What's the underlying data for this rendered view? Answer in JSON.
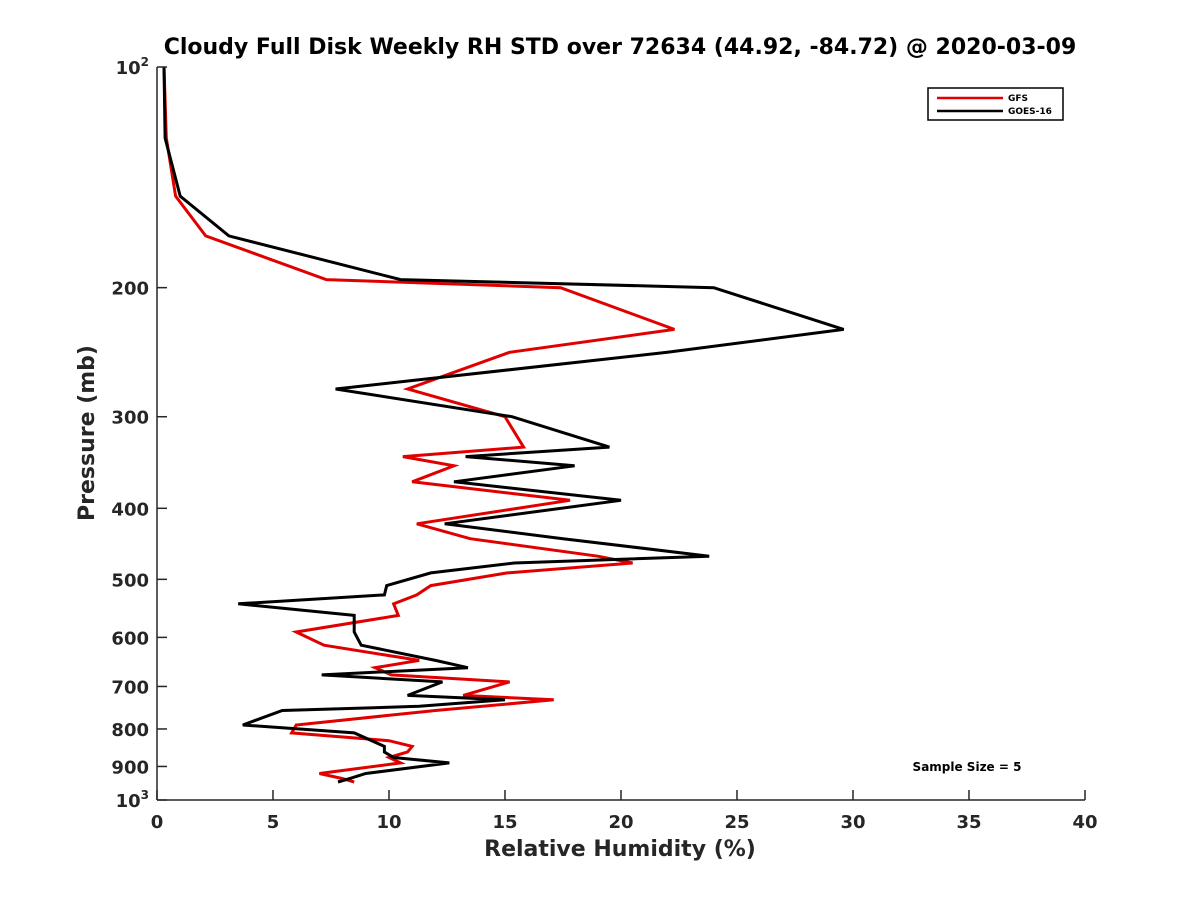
{
  "chart_data": {
    "type": "line",
    "title": "Cloudy Full Disk Weekly RH STD over 72634 (44.92, -84.72) @ 2020-03-09",
    "xlabel": "Relative Humidity (%)",
    "ylabel": "Pressure (mb)",
    "xlim": [
      0,
      40
    ],
    "ylim": [
      100,
      1000
    ],
    "y_scale": "log",
    "y_reversed": true,
    "x_ticks": [
      "0",
      "5",
      "10",
      "15",
      "20",
      "25",
      "30",
      "35",
      "40"
    ],
    "x_tick_values": [
      0,
      5,
      10,
      15,
      20,
      25,
      30,
      35,
      40
    ],
    "y_ticks": [
      {
        "value": 100,
        "label": "10",
        "sup": "2"
      },
      {
        "value": 200,
        "label": "200",
        "sup": ""
      },
      {
        "value": 300,
        "label": "300",
        "sup": ""
      },
      {
        "value": 400,
        "label": "400",
        "sup": ""
      },
      {
        "value": 500,
        "label": "500",
        "sup": ""
      },
      {
        "value": 600,
        "label": "600",
        "sup": ""
      },
      {
        "value": 700,
        "label": "700",
        "sup": ""
      },
      {
        "value": 800,
        "label": "800",
        "sup": ""
      },
      {
        "value": 900,
        "label": "900",
        "sup": ""
      },
      {
        "value": 1000,
        "label": "10",
        "sup": "3"
      }
    ],
    "grid": false,
    "legend_position": "top-right",
    "annotation": "Sample Size = 5",
    "series": [
      {
        "name": "GFS",
        "color": "#e00000",
        "points": [
          [
            0.3,
            100
          ],
          [
            0.4,
            125
          ],
          [
            0.8,
            150
          ],
          [
            2.1,
            170
          ],
          [
            7.3,
            195
          ],
          [
            17.4,
            200
          ],
          [
            22.3,
            228
          ],
          [
            15.2,
            245
          ],
          [
            10.8,
            275
          ],
          [
            15.0,
            300
          ],
          [
            15.8,
            330
          ],
          [
            10.6,
            340
          ],
          [
            12.8,
            350
          ],
          [
            11.0,
            368
          ],
          [
            17.8,
            390
          ],
          [
            11.2,
            420
          ],
          [
            13.5,
            440
          ],
          [
            19.0,
            465
          ],
          [
            20.5,
            475
          ],
          [
            15.1,
            490
          ],
          [
            11.8,
            510
          ],
          [
            11.2,
            525
          ],
          [
            10.2,
            540
          ],
          [
            10.4,
            560
          ],
          [
            6.0,
            590
          ],
          [
            7.2,
            615
          ],
          [
            11.3,
            645
          ],
          [
            9.4,
            660
          ],
          [
            10.1,
            675
          ],
          [
            15.2,
            690
          ],
          [
            13.2,
            720
          ],
          [
            17.1,
            730
          ],
          [
            12.0,
            755
          ],
          [
            6.0,
            790
          ],
          [
            5.8,
            810
          ],
          [
            10.0,
            830
          ],
          [
            11.0,
            845
          ],
          [
            10.8,
            860
          ],
          [
            10.0,
            875
          ],
          [
            10.5,
            890
          ],
          [
            7.0,
            920
          ],
          [
            8.0,
            935
          ],
          [
            8.5,
            945
          ]
        ]
      },
      {
        "name": "GOES-16",
        "color": "#000000",
        "points": [
          [
            0.3,
            100
          ],
          [
            0.35,
            125
          ],
          [
            1.0,
            150
          ],
          [
            3.1,
            170
          ],
          [
            10.5,
            195
          ],
          [
            24.0,
            200
          ],
          [
            29.6,
            228
          ],
          [
            22.0,
            245
          ],
          [
            7.7,
            275
          ],
          [
            15.3,
            300
          ],
          [
            19.5,
            330
          ],
          [
            13.3,
            340
          ],
          [
            18.0,
            350
          ],
          [
            12.8,
            368
          ],
          [
            20.0,
            390
          ],
          [
            12.4,
            420
          ],
          [
            17.5,
            440
          ],
          [
            23.8,
            465
          ],
          [
            15.4,
            475
          ],
          [
            11.8,
            490
          ],
          [
            9.9,
            510
          ],
          [
            9.8,
            525
          ],
          [
            3.5,
            540
          ],
          [
            8.5,
            560
          ],
          [
            8.5,
            590
          ],
          [
            8.8,
            615
          ],
          [
            12.0,
            645
          ],
          [
            13.4,
            660
          ],
          [
            7.1,
            675
          ],
          [
            12.3,
            690
          ],
          [
            10.8,
            720
          ],
          [
            15.0,
            730
          ],
          [
            11.3,
            745
          ],
          [
            5.4,
            755
          ],
          [
            3.7,
            790
          ],
          [
            8.5,
            810
          ],
          [
            9.8,
            845
          ],
          [
            9.8,
            860
          ],
          [
            10.2,
            875
          ],
          [
            12.6,
            890
          ],
          [
            9.0,
            920
          ],
          [
            8.3,
            935
          ],
          [
            7.8,
            945
          ]
        ]
      }
    ]
  }
}
